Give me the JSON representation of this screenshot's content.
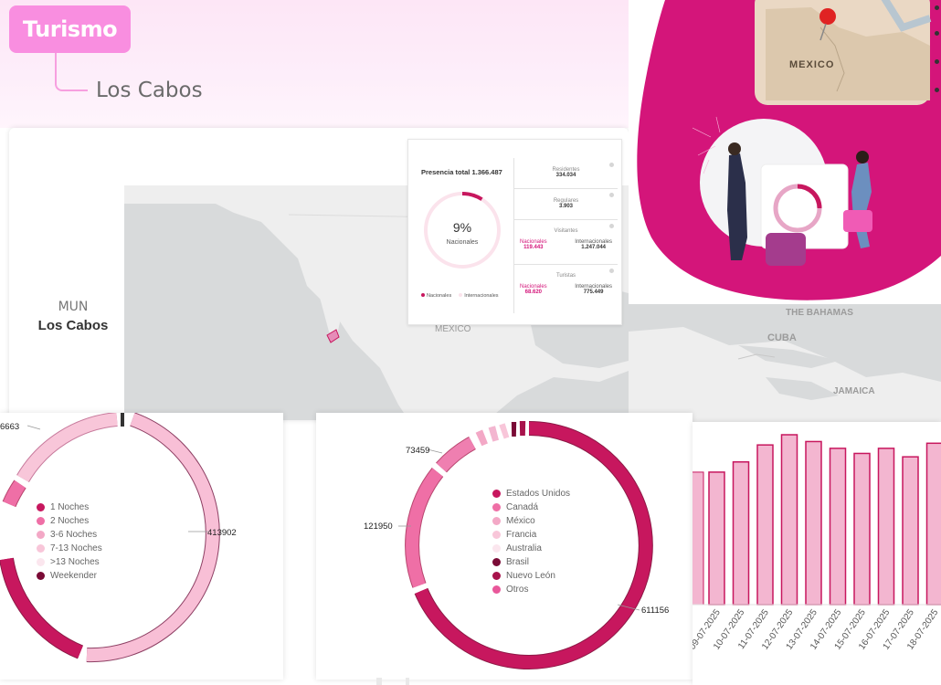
{
  "header": {
    "section": "Turismo",
    "location": "Los Cabos"
  },
  "map": {
    "mun_label": "MUN",
    "mun_name": "Los Cabos",
    "labels": {
      "mexico": "MÉXICO",
      "bahamas": "THE BAHAMAS",
      "cuba": "CUBA",
      "jamaica": "JAMAICA"
    }
  },
  "stats": {
    "total": "Presencia total 1.366.487",
    "gauge_pct_label": "9%",
    "gauge_pct": 9,
    "gauge_sub": "Nacionales",
    "legend_nac": "Nacionales",
    "legend_int": "Internacionales",
    "residentes": {
      "label": "Residentes",
      "value": "334.034"
    },
    "regulares": {
      "label": "Regulares",
      "value": "3.903"
    },
    "visitantes": {
      "label": "Visitantes",
      "nac_label": "Nacionales",
      "nac_value": "119.443",
      "int_label": "Internacionales",
      "int_value": "1.247.044"
    },
    "turistas": {
      "label": "Turistas",
      "nac_label": "Nacionales",
      "nac_value": "68.620",
      "int_label": "Internacionales",
      "int_value": "775.449"
    }
  },
  "promo": {
    "map_word": "MEXICO"
  },
  "nights": {
    "legend": [
      {
        "label": "1 Noches",
        "color": "#c7175e"
      },
      {
        "label": "2 Noches",
        "color": "#ef6fa6"
      },
      {
        "label": "3-6 Noches",
        "color": "#f3a8c6"
      },
      {
        "label": "7-13 Noches",
        "color": "#f8c6d9"
      },
      {
        "label": ">13 Noches",
        "color": "#fbe6ee"
      },
      {
        "label": "Weekender",
        "color": "#7a0b36"
      }
    ],
    "label_top": "6663",
    "label_right": "413902"
  },
  "origin": {
    "legend": [
      {
        "label": "Estados Unidos",
        "color": "#c7175e"
      },
      {
        "label": "Canadá",
        "color": "#ef6fa6"
      },
      {
        "label": "México",
        "color": "#f3a8c6"
      },
      {
        "label": "Francia",
        "color": "#f8c6d9"
      },
      {
        "label": "Australia",
        "color": "#fbe6ee"
      },
      {
        "label": "Brasil",
        "color": "#7a0b36"
      },
      {
        "label": "Nuevo León",
        "color": "#a8134c"
      },
      {
        "label": "Otros",
        "color": "#e9579a"
      }
    ],
    "label_a": "73459",
    "label_b": "121950",
    "label_c": "611156"
  },
  "chart_data": {
    "type": "bar",
    "categories": [
      "09-07-2025",
      "10-07-2025",
      "11-07-2025",
      "12-07-2025",
      "13-07-2025",
      "14-07-2025",
      "15-07-2025",
      "16-07-2025",
      "17-07-2025",
      "18-07-2025"
    ],
    "values": [
      78,
      84,
      94,
      100,
      96,
      92,
      89,
      92,
      87,
      95
    ],
    "ylim": [
      0,
      100
    ],
    "bar_color": "#f3b6d0",
    "edge_color": "#c7175e"
  }
}
